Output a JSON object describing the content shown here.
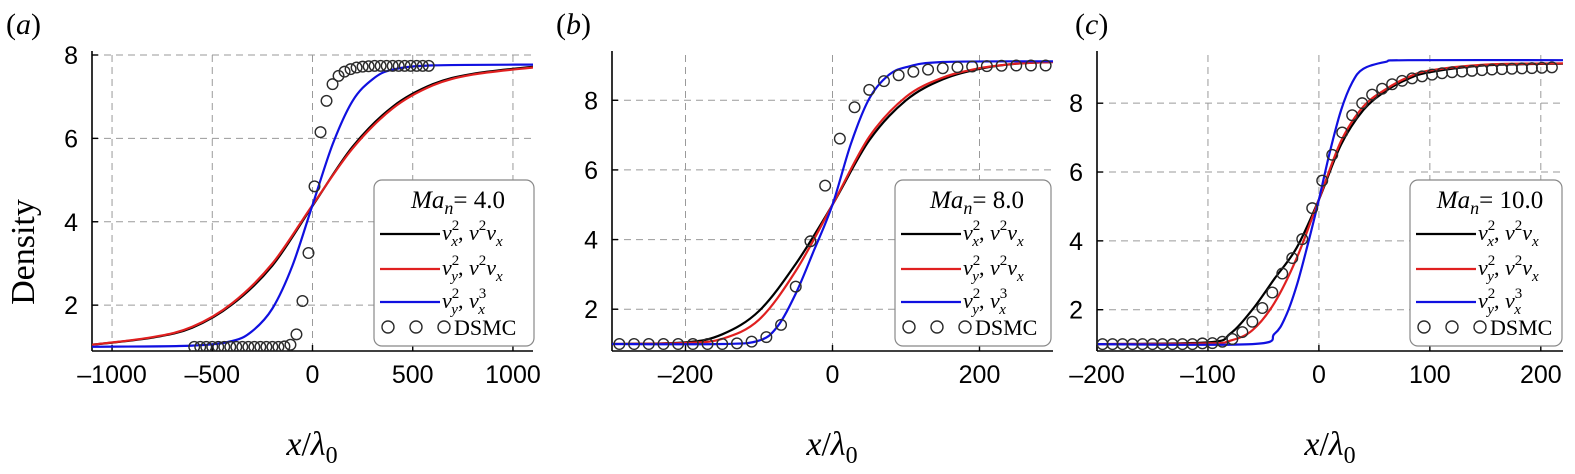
{
  "ylabel": "Density",
  "xlabel": {
    "main": "x",
    "slash": "/",
    "lambda": "λ",
    "sub": "0"
  },
  "legend_labels": [
    "v_x^2, v^2 v_x",
    "v_y^2, v^2 v_x",
    "v_y^2, v_x^3",
    "DSMC"
  ],
  "colors": {
    "black": "#000000",
    "red": "#e02020",
    "blue": "#1010e0",
    "grid": "#9a9a9a"
  },
  "chart_data": [
    {
      "panel": "(a)",
      "type": "line",
      "legend_title": "Ma_n = 4.0",
      "mach": "4.0",
      "xlim": [
        -1100,
        1100
      ],
      "ylim": [
        0.9,
        8
      ],
      "xticks": [
        -1000,
        -500,
        0,
        500,
        1000
      ],
      "xtick_labels": [
        "–1000",
        "–500",
        "0",
        "500",
        "1000"
      ],
      "yticks": [
        2,
        4,
        6,
        8
      ],
      "grid": true,
      "legend_position": "right",
      "series": [
        {
          "name": "v_x^2, v^2 v_x",
          "color": "black",
          "x": [
            -1100,
            -800,
            -600,
            -400,
            -200,
            0,
            200,
            400,
            600,
            800,
            1100
          ],
          "y": [
            1.05,
            1.22,
            1.46,
            2.02,
            2.95,
            4.38,
            5.8,
            6.76,
            7.3,
            7.55,
            7.72
          ]
        },
        {
          "name": "v_y^2, v^2 v_x",
          "color": "red",
          "x": [
            -1100,
            -800,
            -600,
            -400,
            -200,
            0,
            200,
            400,
            600,
            800,
            1100
          ],
          "y": [
            1.05,
            1.23,
            1.48,
            2.05,
            3.0,
            4.4,
            5.76,
            6.72,
            7.27,
            7.53,
            7.7
          ]
        },
        {
          "name": "v_y^2, v_x^3",
          "color": "blue",
          "x": [
            -1100,
            -600,
            -400,
            -300,
            -200,
            -100,
            0,
            100,
            200,
            300,
            400,
            600,
            1100
          ],
          "y": [
            1.0,
            1.03,
            1.14,
            1.38,
            1.92,
            2.95,
            4.4,
            5.85,
            6.9,
            7.42,
            7.65,
            7.75,
            7.77
          ]
        },
        {
          "name": "DSMC",
          "marker": "circle",
          "x": [
            -590,
            -560,
            -530,
            -500,
            -470,
            -440,
            -410,
            -380,
            -350,
            -320,
            -290,
            -260,
            -230,
            -200,
            -170,
            -140,
            -110,
            -80,
            -50,
            -20,
            10,
            40,
            70,
            100,
            130,
            160,
            190,
            220,
            250,
            280,
            310,
            340,
            370,
            400,
            430,
            460,
            490,
            520,
            550,
            580
          ],
          "y": [
            1.0,
            1.0,
            1.0,
            1.0,
            1.0,
            1.0,
            1.0,
            1.0,
            1.0,
            1.0,
            1.0,
            1.0,
            1.0,
            1.0,
            1.0,
            1.01,
            1.05,
            1.3,
            2.1,
            3.25,
            4.85,
            6.15,
            6.9,
            7.3,
            7.5,
            7.6,
            7.66,
            7.7,
            7.72,
            7.73,
            7.74,
            7.74,
            7.74,
            7.74,
            7.74,
            7.74,
            7.74,
            7.74,
            7.74,
            7.74
          ]
        }
      ]
    },
    {
      "panel": "(b)",
      "type": "line",
      "legend_title": "Ma_n = 8.0",
      "mach": "8.0",
      "xlim": [
        -300,
        300
      ],
      "ylim": [
        0.8,
        9.3
      ],
      "xticks": [
        -200,
        0,
        200
      ],
      "xtick_labels": [
        "–200",
        "0",
        "200"
      ],
      "yticks": [
        2,
        4,
        6,
        8
      ],
      "grid": true,
      "legend_position": "right",
      "series": [
        {
          "name": "v_x^2, v^2 v_x",
          "color": "black",
          "x": [
            -300,
            -200,
            -150,
            -100,
            -50,
            0,
            50,
            100,
            150,
            200,
            250,
            300
          ],
          "y": [
            1.0,
            1.05,
            1.28,
            1.95,
            3.3,
            5.0,
            6.85,
            8.0,
            8.6,
            8.9,
            9.05,
            9.1
          ]
        },
        {
          "name": "v_y^2, v^2 v_x",
          "color": "red",
          "x": [
            -300,
            -200,
            -150,
            -100,
            -50,
            0,
            50,
            100,
            150,
            200,
            250,
            300
          ],
          "y": [
            1.0,
            1.03,
            1.15,
            1.7,
            3.1,
            5.0,
            6.95,
            8.1,
            8.65,
            8.92,
            9.05,
            9.1
          ]
        },
        {
          "name": "v_y^2, v_x^3",
          "color": "blue",
          "x": [
            -300,
            -150,
            -100,
            -75,
            -50,
            -25,
            0,
            25,
            50,
            75,
            100,
            150,
            300
          ],
          "y": [
            1.0,
            1.0,
            1.1,
            1.5,
            2.45,
            3.7,
            5.0,
            6.75,
            8.05,
            8.7,
            8.95,
            9.1,
            9.12
          ]
        },
        {
          "name": "DSMC",
          "marker": "circle",
          "x": [
            -290,
            -270,
            -250,
            -230,
            -210,
            -190,
            -170,
            -150,
            -130,
            -110,
            -90,
            -70,
            -50,
            -30,
            -10,
            10,
            30,
            50,
            70,
            90,
            110,
            130,
            150,
            170,
            190,
            210,
            230,
            250,
            270,
            290
          ],
          "y": [
            1.0,
            1.0,
            1.0,
            1.0,
            1.0,
            1.0,
            1.0,
            1.0,
            1.02,
            1.07,
            1.2,
            1.55,
            2.65,
            3.95,
            5.55,
            6.9,
            7.8,
            8.3,
            8.55,
            8.72,
            8.82,
            8.88,
            8.92,
            8.95,
            8.97,
            8.98,
            8.99,
            9.0,
            9.0,
            9.0
          ]
        }
      ]
    },
    {
      "panel": "(c)",
      "type": "line",
      "legend_title": "Ma_n = 10.0",
      "mach": "10.0",
      "xlim": [
        -200,
        220
      ],
      "ylim": [
        0.8,
        9.4
      ],
      "xticks": [
        -200,
        -100,
        0,
        100,
        200
      ],
      "xtick_labels": [
        "–200",
        "–100",
        "0",
        "100",
        "200"
      ],
      "yticks": [
        2,
        4,
        6,
        8
      ],
      "grid": true,
      "legend_position": "right",
      "series": [
        {
          "name": "v_x^2, v^2 v_x",
          "color": "black",
          "x": [
            -200,
            -100,
            -80,
            -60,
            -40,
            -20,
            0,
            20,
            40,
            60,
            80,
            100,
            150,
            220
          ],
          "y": [
            1.0,
            1.05,
            1.3,
            2.0,
            2.9,
            3.8,
            5.2,
            6.8,
            7.8,
            8.35,
            8.7,
            8.9,
            9.1,
            9.15
          ]
        },
        {
          "name": "v_y^2, v^2 v_x",
          "color": "red",
          "x": [
            -200,
            -100,
            -80,
            -60,
            -40,
            -20,
            0,
            20,
            40,
            60,
            80,
            100,
            150,
            220
          ],
          "y": [
            1.0,
            1.02,
            1.1,
            1.4,
            2.2,
            3.5,
            5.2,
            6.9,
            7.9,
            8.4,
            8.75,
            8.95,
            9.12,
            9.16
          ]
        },
        {
          "name": "v_y^2, v_x^3",
          "color": "blue",
          "x": [
            -200,
            -60,
            -40,
            -30,
            -20,
            -10,
            0,
            10,
            20,
            30,
            40,
            60,
            80,
            220
          ],
          "y": [
            1.0,
            1.0,
            1.3,
            1.8,
            2.7,
            3.9,
            5.2,
            6.6,
            7.8,
            8.6,
            9.0,
            9.2,
            9.25,
            9.25
          ]
        },
        {
          "name": "DSMC",
          "marker": "circle",
          "x": [
            -195,
            -186,
            -177,
            -168,
            -159,
            -150,
            -141,
            -132,
            -123,
            -114,
            -105,
            -96,
            -87,
            -78,
            -69,
            -60,
            -51,
            -42,
            -33,
            -24,
            -15,
            -6,
            3,
            12,
            21,
            30,
            39,
            48,
            57,
            66,
            75,
            84,
            93,
            102,
            111,
            120,
            129,
            138,
            147,
            156,
            165,
            174,
            183,
            192,
            201,
            210
          ],
          "y": [
            1.0,
            1.0,
            1.0,
            1.0,
            1.0,
            1.0,
            1.0,
            1.0,
            1.0,
            1.0,
            1.02,
            1.03,
            1.07,
            1.15,
            1.35,
            1.65,
            2.05,
            2.5,
            3.05,
            3.5,
            4.05,
            4.95,
            5.75,
            6.5,
            7.15,
            7.65,
            8.0,
            8.25,
            8.42,
            8.55,
            8.65,
            8.72,
            8.78,
            8.83,
            8.87,
            8.9,
            8.92,
            8.94,
            8.96,
            8.98,
            8.99,
            9.0,
            9.01,
            9.02,
            9.03,
            9.04
          ]
        }
      ]
    }
  ]
}
